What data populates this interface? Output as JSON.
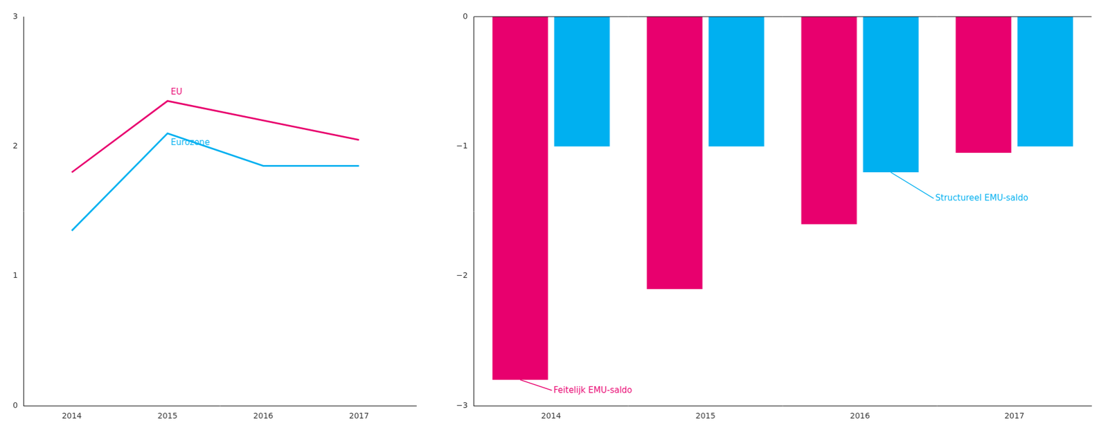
{
  "chart_data": [
    {
      "type": "line",
      "x": [
        2014,
        2015,
        2016,
        2017
      ],
      "series": [
        {
          "name": "EU",
          "color": "#e8006e",
          "values": [
            1.8,
            2.35,
            2.2,
            2.05
          ]
        },
        {
          "name": "Eurozone",
          "color": "#00b0f0",
          "values": [
            1.35,
            2.1,
            1.85,
            1.85
          ]
        }
      ],
      "xlim": [
        2013.5,
        2017.6
      ],
      "xticks": [
        2014,
        2015,
        2016,
        2017
      ],
      "ylim": [
        0,
        3
      ],
      "yticks": [
        0,
        1,
        2,
        3
      ],
      "grid": false
    },
    {
      "type": "bar",
      "categories": [
        "2014",
        "2015",
        "2016",
        "2017"
      ],
      "series": [
        {
          "name": "Feitelijk EMU-saldo",
          "color": "#e8006e",
          "values": [
            -2.8,
            -2.1,
            -1.6,
            -1.05
          ]
        },
        {
          "name": "Structureel EMU-saldo",
          "color": "#00b0f0",
          "values": [
            -1.0,
            -1.0,
            -1.2,
            -1.0
          ]
        }
      ],
      "ylim": [
        -3,
        0
      ],
      "yticks": [
        {
          "value": -3,
          "label": "−3"
        },
        {
          "value": -2,
          "label": "−2"
        },
        {
          "value": -1,
          "label": "−1"
        },
        0
      ],
      "grid": false
    }
  ]
}
